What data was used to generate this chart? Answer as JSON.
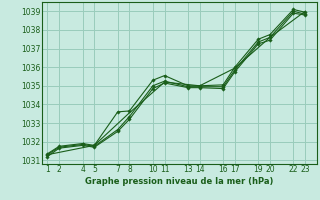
{
  "title": "Graphe pression niveau de la mer (hPa)",
  "bg_color": "#c8eae0",
  "grid_color": "#99ccbb",
  "line_color": "#1a5e1a",
  "ylim": [
    1030.8,
    1039.5
  ],
  "yticks": [
    1031,
    1032,
    1033,
    1034,
    1035,
    1036,
    1037,
    1038,
    1039
  ],
  "xlim": [
    0.5,
    24.0
  ],
  "xtick_positions": [
    1,
    2,
    4,
    5,
    7,
    8,
    10,
    11,
    13,
    14,
    16,
    17,
    19,
    20,
    22,
    23
  ],
  "xtick_labels": [
    "1",
    "2",
    "4",
    "5",
    "7",
    "8",
    "10",
    "11",
    "13",
    "14",
    "16",
    "17",
    "19",
    "20",
    "22",
    "23"
  ],
  "series": [
    {
      "x": [
        1,
        2,
        4,
        5,
        7,
        8,
        10,
        11,
        13,
        14,
        16,
        17,
        19,
        20,
        22,
        23
      ],
      "y": [
        1031.35,
        1031.75,
        1031.9,
        1031.8,
        1033.6,
        1033.65,
        1035.3,
        1035.55,
        1035.0,
        1035.0,
        1035.05,
        1036.0,
        1037.5,
        1037.75,
        1039.1,
        1038.95
      ]
    },
    {
      "x": [
        1,
        2,
        4,
        5,
        7,
        8,
        10,
        11,
        13,
        14,
        16,
        17,
        19,
        20,
        22,
        23
      ],
      "y": [
        1031.3,
        1031.7,
        1031.85,
        1031.75,
        1032.65,
        1033.35,
        1035.0,
        1035.25,
        1034.95,
        1034.95,
        1034.95,
        1035.85,
        1037.35,
        1037.6,
        1039.0,
        1038.85
      ]
    },
    {
      "x": [
        1,
        2,
        4,
        5,
        7,
        8,
        10,
        11,
        13,
        14,
        16,
        17,
        19,
        20,
        22,
        23
      ],
      "y": [
        1031.2,
        1031.65,
        1031.8,
        1031.7,
        1032.55,
        1033.2,
        1034.85,
        1035.15,
        1034.9,
        1034.9,
        1034.85,
        1035.75,
        1037.25,
        1037.45,
        1038.9,
        1038.8
      ]
    },
    {
      "x": [
        1,
        5,
        8,
        11,
        14,
        17,
        20,
        23
      ],
      "y": [
        1031.3,
        1031.8,
        1033.55,
        1035.2,
        1035.0,
        1035.95,
        1037.6,
        1039.0
      ]
    }
  ]
}
